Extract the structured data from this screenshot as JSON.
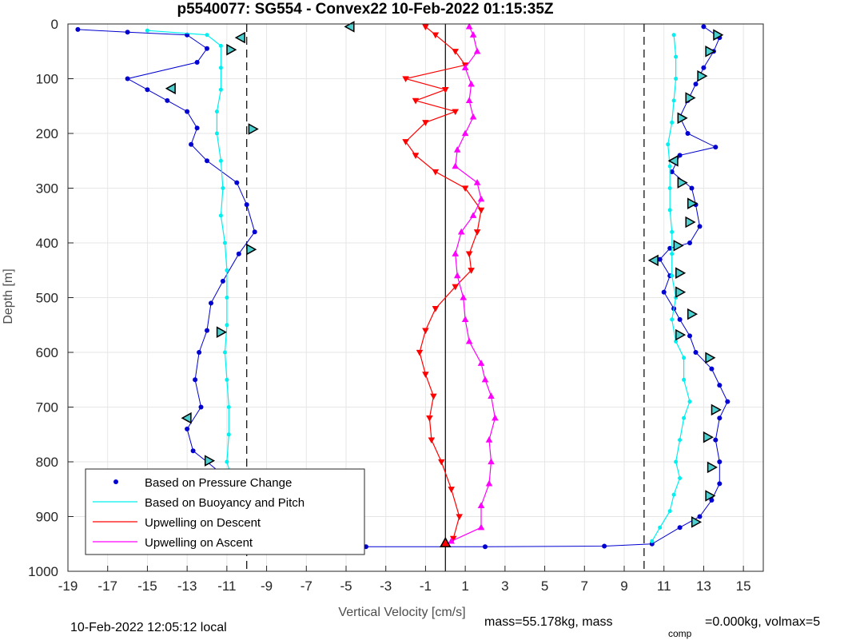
{
  "chart_data": {
    "type": "scatter",
    "title": "p5540077: SG554 - Convex22 10-Feb-2022 01:15:35Z",
    "xlabel": "Vertical Velocity [cm/s]",
    "ylabel": "Depth [m]",
    "xlim": [
      -19,
      16
    ],
    "ylim": [
      0,
      1000
    ],
    "y_reversed": true,
    "xticks": [
      -19,
      -17,
      -15,
      -13,
      -11,
      -9,
      -7,
      -5,
      -3,
      -1,
      1,
      3,
      5,
      7,
      9,
      11,
      13,
      15
    ],
    "yticks": [
      0,
      100,
      200,
      300,
      400,
      500,
      600,
      700,
      800,
      900,
      1000
    ],
    "grid": true,
    "legend_position": "bottom-left",
    "reference_lines": [
      {
        "style": "dashed",
        "x": -10
      },
      {
        "style": "dashed",
        "x": 10
      },
      {
        "style": "solid",
        "x": 0
      }
    ],
    "series": [
      {
        "name": "Based on Pressure Change",
        "color": "#0000d0",
        "marker": "dot",
        "descent": [
          [
            -18.5,
            10
          ],
          [
            -16,
            15
          ],
          [
            -13,
            20
          ],
          [
            -12,
            45
          ],
          [
            -12.5,
            70
          ],
          [
            -16,
            100
          ],
          [
            -15,
            120
          ],
          [
            -14,
            140
          ],
          [
            -13,
            160
          ],
          [
            -12.5,
            190
          ],
          [
            -12.8,
            220
          ],
          [
            -12,
            250
          ],
          [
            -10.5,
            290
          ],
          [
            -10,
            330
          ],
          [
            -9.6,
            380
          ],
          [
            -10.4,
            420
          ],
          [
            -11.2,
            470
          ],
          [
            -11.8,
            510
          ],
          [
            -12,
            560
          ],
          [
            -12.4,
            600
          ],
          [
            -12.6,
            650
          ],
          [
            -12.3,
            700
          ],
          [
            -13,
            740
          ],
          [
            -12.7,
            780
          ],
          [
            -12,
            800
          ],
          [
            -11,
            830
          ],
          [
            -10.3,
            880
          ],
          [
            -10.5,
            920
          ],
          [
            -11,
            950
          ]
        ],
        "ascent": [
          [
            -4,
            955
          ],
          [
            2,
            955
          ],
          [
            8,
            954
          ],
          [
            10.4,
            950
          ],
          [
            11.8,
            920
          ],
          [
            12.8,
            900
          ],
          [
            13.4,
            870
          ],
          [
            13.8,
            840
          ],
          [
            13.8,
            800
          ],
          [
            13.6,
            760
          ],
          [
            13.8,
            720
          ],
          [
            14.2,
            690
          ],
          [
            13.8,
            660
          ],
          [
            13.4,
            630
          ],
          [
            12.6,
            600
          ],
          [
            12.3,
            570
          ],
          [
            11.8,
            540
          ],
          [
            11.5,
            520
          ],
          [
            11,
            490
          ],
          [
            11.3,
            460
          ],
          [
            10.8,
            430
          ],
          [
            11.3,
            410
          ],
          [
            12.3,
            400
          ],
          [
            12.8,
            370
          ],
          [
            12.6,
            330
          ],
          [
            12.4,
            300
          ],
          [
            11.4,
            270
          ],
          [
            11.8,
            240
          ],
          [
            13.6,
            225
          ],
          [
            12.2,
            200
          ],
          [
            11.8,
            170
          ],
          [
            12.2,
            140
          ],
          [
            12.6,
            110
          ],
          [
            13,
            80
          ],
          [
            13.5,
            50
          ],
          [
            13.8,
            25
          ],
          [
            13,
            5
          ]
        ]
      },
      {
        "name": "Based on Buoyancy and Pitch",
        "color": "#00f0f0",
        "marker": "dot",
        "descent": [
          [
            -15,
            12
          ],
          [
            -12,
            20
          ],
          [
            -11.3,
            40
          ],
          [
            -11.3,
            80
          ],
          [
            -11.3,
            120
          ],
          [
            -11.5,
            160
          ],
          [
            -11.5,
            200
          ],
          [
            -11.3,
            250
          ],
          [
            -11.2,
            300
          ],
          [
            -11.3,
            350
          ],
          [
            -11.1,
            400
          ],
          [
            -11,
            450
          ],
          [
            -11,
            500
          ],
          [
            -11,
            550
          ],
          [
            -11.1,
            600
          ],
          [
            -11,
            650
          ],
          [
            -10.9,
            700
          ],
          [
            -10.9,
            750
          ],
          [
            -11,
            800
          ],
          [
            -10.6,
            850
          ],
          [
            -10.4,
            900
          ],
          [
            -10.3,
            940
          ]
        ],
        "ascent": [
          [
            10.4,
            945
          ],
          [
            10.8,
            920
          ],
          [
            11.3,
            890
          ],
          [
            11.5,
            860
          ],
          [
            11.8,
            830
          ],
          [
            11.6,
            800
          ],
          [
            11.8,
            760
          ],
          [
            12,
            720
          ],
          [
            12.3,
            690
          ],
          [
            12,
            650
          ],
          [
            12,
            610
          ],
          [
            11.6,
            580
          ],
          [
            11.4,
            540
          ],
          [
            11.6,
            500
          ],
          [
            11.4,
            460
          ],
          [
            11.4,
            420
          ],
          [
            11.4,
            380
          ],
          [
            11.3,
            340
          ],
          [
            11.3,
            300
          ],
          [
            11.3,
            260
          ],
          [
            11.2,
            220
          ],
          [
            11.4,
            180
          ],
          [
            11.5,
            140
          ],
          [
            11.6,
            100
          ],
          [
            11.6,
            60
          ],
          [
            11.5,
            20
          ]
        ]
      },
      {
        "name": "Upwelling on Descent",
        "color": "#ff0000",
        "marker": "triangle-down",
        "values": [
          [
            -1,
            5
          ],
          [
            -0.5,
            20
          ],
          [
            0.5,
            50
          ],
          [
            1,
            75
          ],
          [
            -2,
            100
          ],
          [
            0,
            120
          ],
          [
            -1.5,
            140
          ],
          [
            0.5,
            160
          ],
          [
            -1,
            180
          ],
          [
            -2,
            215
          ],
          [
            -1.5,
            240
          ],
          [
            -0.5,
            270
          ],
          [
            1,
            300
          ],
          [
            1.8,
            340
          ],
          [
            1.6,
            380
          ],
          [
            1.2,
            420
          ],
          [
            1.3,
            450
          ],
          [
            0.5,
            480
          ],
          [
            -0.5,
            520
          ],
          [
            -1,
            560
          ],
          [
            -1.3,
            600
          ],
          [
            -1,
            640
          ],
          [
            -0.6,
            680
          ],
          [
            -0.8,
            720
          ],
          [
            -0.7,
            760
          ],
          [
            -0.2,
            800
          ],
          [
            0.3,
            850
          ],
          [
            0.7,
            900
          ],
          [
            0.4,
            940
          ]
        ]
      },
      {
        "name": "Upwelling on Ascent",
        "color": "#ff00ff",
        "marker": "triangle-up",
        "values": [
          [
            0.3,
            945
          ],
          [
            1.8,
            920
          ],
          [
            1.8,
            880
          ],
          [
            2.2,
            840
          ],
          [
            2.3,
            800
          ],
          [
            2.2,
            760
          ],
          [
            2.5,
            720
          ],
          [
            2.3,
            680
          ],
          [
            2,
            650
          ],
          [
            1.8,
            620
          ],
          [
            1.2,
            580
          ],
          [
            1,
            540
          ],
          [
            0.9,
            500
          ],
          [
            0.6,
            460
          ],
          [
            0.5,
            420
          ],
          [
            0.8,
            380
          ],
          [
            1.4,
            350
          ],
          [
            1.8,
            320
          ],
          [
            1.6,
            290
          ],
          [
            0.5,
            260
          ],
          [
            0.6,
            230
          ],
          [
            1,
            200
          ],
          [
            1.4,
            170
          ],
          [
            1.2,
            140
          ],
          [
            1.3,
            110
          ],
          [
            1,
            80
          ],
          [
            1.6,
            50
          ],
          [
            1.4,
            20
          ],
          [
            1.2,
            5
          ]
        ]
      }
    ],
    "markers": [
      {
        "type": "triangle-left",
        "points": [
          [
            -4.8,
            5
          ],
          [
            -10.3,
            25
          ],
          [
            -13.8,
            118
          ],
          [
            -13,
            720
          ],
          [
            11.5,
            250
          ],
          [
            10.5,
            432
          ]
        ]
      },
      {
        "type": "triangle-right",
        "points": [
          [
            -10.8,
            47
          ],
          [
            -9.7,
            192
          ],
          [
            -9.8,
            412
          ],
          [
            -11.3,
            563
          ],
          [
            -11.9,
            798
          ],
          [
            13.7,
            20
          ],
          [
            13.3,
            50
          ],
          [
            12.9,
            95
          ],
          [
            12.3,
            135
          ],
          [
            11.9,
            172
          ],
          [
            11.9,
            290
          ],
          [
            12.4,
            328
          ],
          [
            12.3,
            362
          ],
          [
            11.7,
            405
          ],
          [
            11.8,
            455
          ],
          [
            11.8,
            490
          ],
          [
            12.4,
            530
          ],
          [
            11.8,
            568
          ],
          [
            13.3,
            610
          ],
          [
            13.6,
            705
          ],
          [
            13.2,
            755
          ],
          [
            13.4,
            810
          ],
          [
            13.3,
            862
          ],
          [
            12.6,
            910
          ]
        ]
      },
      {
        "type": "triangle-up",
        "points": [
          [
            0,
            948
          ]
        ]
      },
      {
        "type": "triangle-down",
        "points": [
          [
            -10,
            950
          ]
        ]
      }
    ]
  },
  "legend": {
    "items": [
      {
        "label": "Based on Pressure Change",
        "color": "#0000d0",
        "kind": "dot"
      },
      {
        "label": "Based on Buoyancy and Pitch",
        "color": "#00f0f0",
        "kind": "line"
      },
      {
        "label": "Upwelling on Descent",
        "color": "#ff0000",
        "kind": "line"
      },
      {
        "label": "Upwelling on Ascent",
        "color": "#ff00ff",
        "kind": "line"
      }
    ]
  },
  "footer": {
    "local_time": "10-Feb-2022 12:05:12 local",
    "mass_text": "mass=55.178kg, mass",
    "comp_sub": "comp",
    "comp_text": "=0.000kg, volmax=5"
  }
}
